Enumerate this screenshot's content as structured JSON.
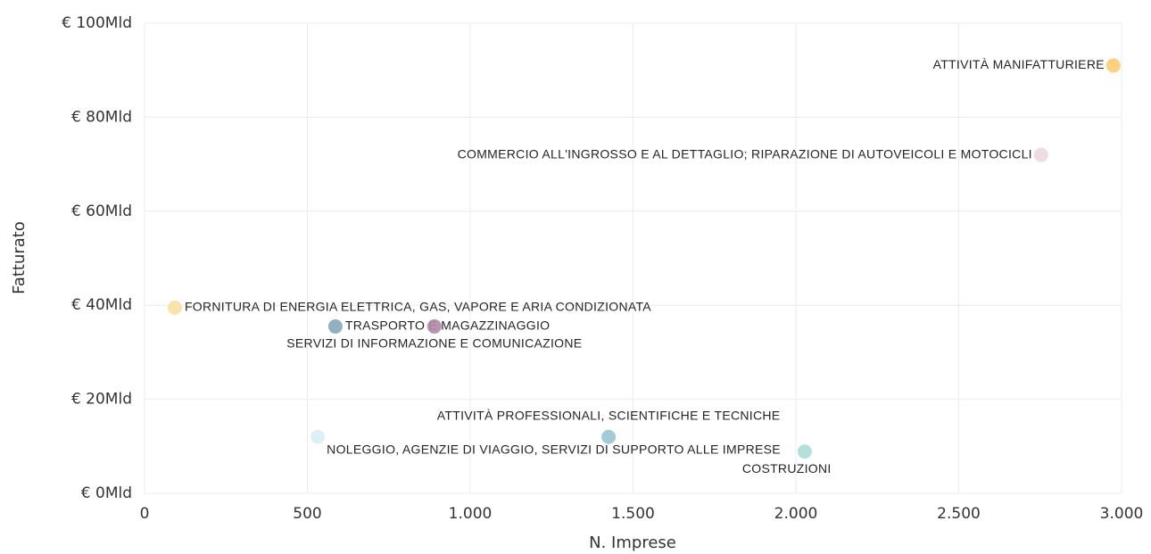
{
  "chart_data": {
    "type": "scatter",
    "x_label": "N. Imprese",
    "y_label": "Fatturato",
    "xlim": [
      0,
      3000
    ],
    "xticks": [
      0,
      500,
      {
        "value": 1000,
        "label": "1.000"
      },
      {
        "value": 1500,
        "label": "1.500"
      },
      {
        "value": 2000,
        "label": "2.000"
      },
      {
        "value": 2500,
        "label": "2.500"
      },
      {
        "value": 3000,
        "label": "3.000"
      }
    ],
    "ylim": [
      0,
      100
    ],
    "yticks": [
      {
        "value": 0,
        "label": "€ 0Mld"
      },
      {
        "value": 20,
        "label": "€ 20Mld"
      },
      {
        "value": 40,
        "label": "€ 40Mld"
      },
      {
        "value": 60,
        "label": "€ 60Mld"
      },
      {
        "value": 80,
        "label": "€ 80Mld"
      },
      {
        "value": 100,
        "label": "€ 100Mld"
      }
    ],
    "grid": true,
    "series": [
      {
        "name": "ATTIVITÀ MANIFATTURIERE",
        "color": "#f9cd72",
        "x": [
          2975
        ],
        "values": [
          91
        ]
      },
      {
        "name": "COMMERCIO ALL'INGROSSO E AL DETTAGLIO; RIPARAZIONE DI AUTOVEICOLI E MOTOCICLI",
        "color": "#ecd8df",
        "x": [
          2753
        ],
        "values": [
          72
        ]
      },
      {
        "name": "FORNITURA DI ENERGIA ELETTRICA, GAS, VAPORE E ARIA CONDIZIONATA",
        "color": "#f7e0a3",
        "x": [
          93
        ],
        "values": [
          39.5
        ]
      },
      {
        "name": "TRASPORTO E MAGAZZINAGGIO",
        "color": "#86a8b9",
        "x": [
          586
        ],
        "values": [
          35.5
        ]
      },
      {
        "name": "SERVIZI DI INFORMAZIONE E COMUNICAZIONE",
        "color": "#b08aa8",
        "x": [
          890
        ],
        "values": [
          35.5
        ]
      },
      {
        "name": "ATTIVITÀ PROFESSIONALI, SCIENTIFICHE E TECNICHE",
        "color": "#97c5d3",
        "x": [
          1425
        ],
        "values": [
          12
        ]
      },
      {
        "name": "NOLEGGIO, AGENZIE DI VIAGGIO, SERVIZI DI SUPPORTO ALLE IMPRESE",
        "color": "#d9eef5",
        "x": [
          532
        ],
        "values": [
          12
        ]
      },
      {
        "name": "COSTRUZIONI",
        "color": "#acdcd6",
        "x": [
          2027
        ],
        "values": [
          8.9
        ]
      }
    ]
  }
}
